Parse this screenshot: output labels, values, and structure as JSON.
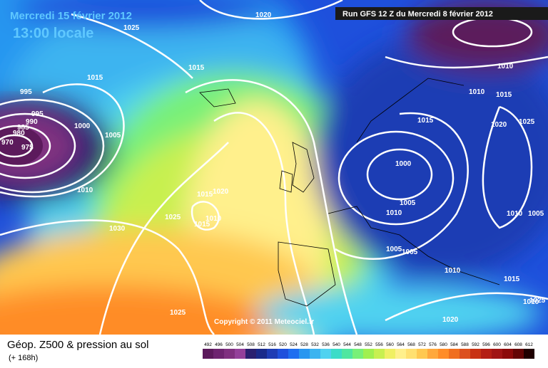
{
  "header": {
    "date": "Mercredi 15 février 2012",
    "time": "13:00 locale",
    "run": "Run GFS 12 Z du Mercredi 8 février 2012"
  },
  "copyright": "Copyright © 2011 Meteociel.fr",
  "footer": {
    "title": "Géop. Z500 & pression au sol",
    "lead": "(+ 168h)"
  },
  "legend": {
    "levels": [
      492,
      496,
      500,
      504,
      508,
      512,
      516,
      520,
      524,
      528,
      532,
      536,
      540,
      544,
      548,
      552,
      556,
      560,
      564,
      568,
      572,
      576,
      580,
      584,
      588,
      592,
      596,
      600,
      604,
      608,
      612
    ],
    "colors": [
      "#5c1a5c",
      "#6e2470",
      "#803080",
      "#94409a",
      "#2a2070",
      "#1a2a8a",
      "#1e3cb4",
      "#1e50dc",
      "#1e6ef0",
      "#2896f0",
      "#3cb4f0",
      "#50d2f0",
      "#3cdcc8",
      "#50e6a0",
      "#78f078",
      "#a0f050",
      "#c8f050",
      "#f0f064",
      "#fff08c",
      "#ffe070",
      "#ffc850",
      "#ffa83c",
      "#ff8c28",
      "#f06e1e",
      "#dc501e",
      "#c83214",
      "#b41e14",
      "#a01414",
      "#8c0a0a",
      "#640505",
      "#200000"
    ]
  },
  "isobar_labels": [
    1020,
    1025,
    1015,
    1015,
    995,
    995,
    990,
    985,
    980,
    970,
    975,
    1000,
    1005,
    1010,
    1030,
    1025,
    1015,
    1020,
    1010,
    1015,
    1025,
    1000,
    1005,
    1010,
    1005,
    1005,
    1015,
    1015,
    1020,
    1025,
    1010,
    1010,
    1010,
    1005,
    1010,
    1015,
    1020,
    1010,
    1025
  ]
}
